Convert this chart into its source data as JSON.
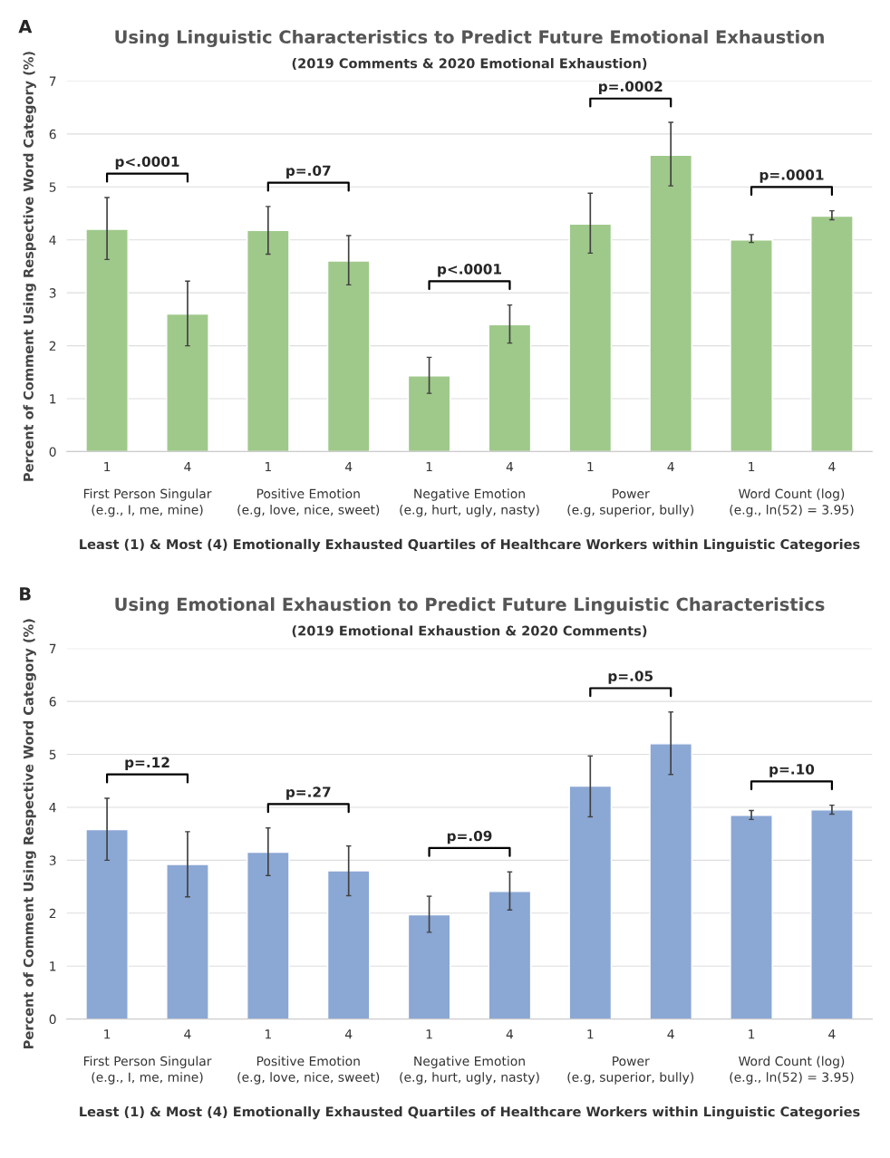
{
  "chart_data": [
    {
      "type": "bar",
      "title": "Using Linguistic Characteristics to Predict Future Emotional Exhaustion",
      "subtitle": "(2019 Comments & 2020 Emotional Exhaustion)",
      "xlabel": "Least (1) & Most (4) Emotionally Exhausted Quartiles of Healthcare Workers within Linguistic Categories",
      "ylabel": "Percent of Comment Using Respective Word Category (%)",
      "categories": [
        "1",
        "4",
        "1",
        "4",
        "1",
        "4",
        "1",
        "4",
        "1",
        "4"
      ],
      "values": [
        4.2,
        2.6,
        4.18,
        3.6,
        1.43,
        2.4,
        4.3,
        5.6,
        4.0,
        4.45
      ],
      "errors": [
        [
          3.63,
          4.8
        ],
        [
          2.0,
          3.22
        ],
        [
          3.73,
          4.63
        ],
        [
          3.15,
          4.08
        ],
        [
          1.1,
          1.78
        ],
        [
          2.05,
          2.77
        ],
        [
          3.75,
          4.88
        ],
        [
          5.02,
          6.22
        ],
        [
          3.95,
          4.1
        ],
        [
          4.38,
          4.55
        ]
      ],
      "color": "#9fc98a",
      "ylim": [
        0,
        7
      ],
      "yticks": [
        0,
        1,
        2,
        3,
        4,
        5,
        6,
        7
      ],
      "grid": "y",
      "annotations": [
        "p<.0001",
        "p=.07",
        "p<.0001",
        "p=.0002",
        "p=.0001",
        "First Person Singular\n(e.g., I, me, mine)",
        "Positive Emotion\n(e.g, love, nice, sweet)",
        "Negative Emotion\n(e.g, hurt, ugly, nasty)",
        "Power\n(e.g, superior, bully)",
        "Word Count (log)\n(e.g., ln(52) = 3.95)",
        "A"
      ]
    },
    {
      "type": "bar",
      "title": "Using Emotional Exhaustion to Predict Future Linguistic Characteristics",
      "subtitle": "(2019 Emotional Exhaustion & 2020 Comments)",
      "xlabel": "Least (1) & Most (4) Emotionally Exhausted Quartiles of Healthcare Workers within Linguistic Categories",
      "ylabel": "Percent of Comment Using Respective Word Category (%)",
      "categories": [
        "1",
        "4",
        "1",
        "4",
        "1",
        "4",
        "1",
        "4",
        "1",
        "4"
      ],
      "values": [
        3.58,
        2.92,
        3.15,
        2.8,
        1.97,
        2.41,
        4.4,
        5.2,
        3.85,
        3.95
      ],
      "errors": [
        [
          3.0,
          4.17
        ],
        [
          2.31,
          3.54
        ],
        [
          2.71,
          3.61
        ],
        [
          2.33,
          3.27
        ],
        [
          1.64,
          2.32
        ],
        [
          2.06,
          2.78
        ],
        [
          3.82,
          4.97
        ],
        [
          4.62,
          5.8
        ],
        [
          3.77,
          3.94
        ],
        [
          3.87,
          4.04
        ]
      ],
      "color": "#8ba7d4",
      "ylim": [
        0,
        7
      ],
      "yticks": [
        0,
        1,
        2,
        3,
        4,
        5,
        6,
        7
      ],
      "grid": "y",
      "annotations": [
        "p=.12",
        "p=.27",
        "p=.09",
        "p=.05",
        "p=.10",
        "First Person Singular\n(e.g., I, me, mine)",
        "Positive Emotion\n(e.g, love, nice, sweet)",
        "Negative Emotion\n(e.g, hurt, ugly, nasty)",
        "Power\n(e.g, superior, bully)",
        "Word Count (log)\n(e.g., ln(52) = 3.95)",
        "B"
      ]
    }
  ]
}
